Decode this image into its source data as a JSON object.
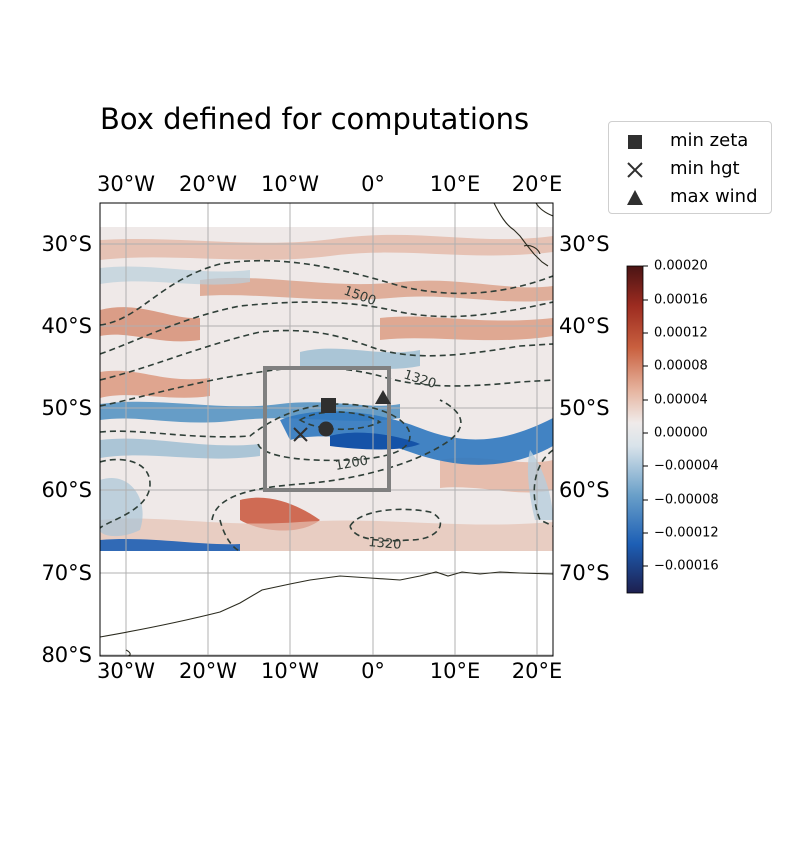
{
  "title": "Box defined for computations",
  "legend": {
    "items": [
      {
        "label": "min zeta",
        "marker": "square",
        "icon": "square-marker-icon"
      },
      {
        "label": "min hgt",
        "marker": "x",
        "icon": "x-marker-icon"
      },
      {
        "label": "max wind",
        "marker": "triangle",
        "icon": "triangle-marker-icon"
      }
    ]
  },
  "map": {
    "lon_ticks": [
      "30°W",
      "20°W",
      "10°W",
      "0°",
      "10°E",
      "20°E"
    ],
    "lat_ticks": [
      "30°S",
      "40°S",
      "50°S",
      "60°S",
      "70°S",
      "80°S"
    ],
    "lon_range": [
      -33,
      22
    ],
    "lat_range": [
      -80,
      -25
    ],
    "data_lat_range": [
      -67.5,
      -27.8
    ],
    "contour_labels": [
      "1500",
      "1320",
      "1200",
      "1320"
    ],
    "contour_interval_note": "",
    "computation_box": {
      "lon": [
        -13,
        1.8
      ],
      "lat": [
        -60,
        -45.5
      ]
    },
    "markers": [
      {
        "type": "min zeta",
        "lon": -5.5,
        "lat": -50,
        "shape": "square"
      },
      {
        "type": "min hgt",
        "lon": -9,
        "lat": -53.5,
        "shape": "x"
      },
      {
        "type": "max wind",
        "lon": 1.2,
        "lat": -48.5,
        "shape": "triangle"
      },
      {
        "type": "center",
        "lon": -5.8,
        "lat": -52.6,
        "shape": "circle"
      }
    ]
  },
  "colorbar": {
    "ticks": [
      "0.00020",
      "0.00016",
      "0.00012",
      "0.00008",
      "0.00004",
      "0.00000",
      "−0.00004",
      "−0.00008",
      "−0.00012",
      "−0.00016"
    ],
    "range": [
      -0.0002,
      0.0002
    ],
    "colors": [
      "#1d1f4f",
      "#1d5fb5",
      "#6aa0c9",
      "#d9e3ea",
      "#f0ebea",
      "#e6b49f",
      "#c9603f",
      "#9c2b20",
      "#4a1414"
    ]
  },
  "colors": {
    "land_line": "#2b2b1f",
    "grid": "#b0b0b0",
    "box": "#808080",
    "contour": "#2f3f38",
    "marker": "#2f2f2f"
  }
}
